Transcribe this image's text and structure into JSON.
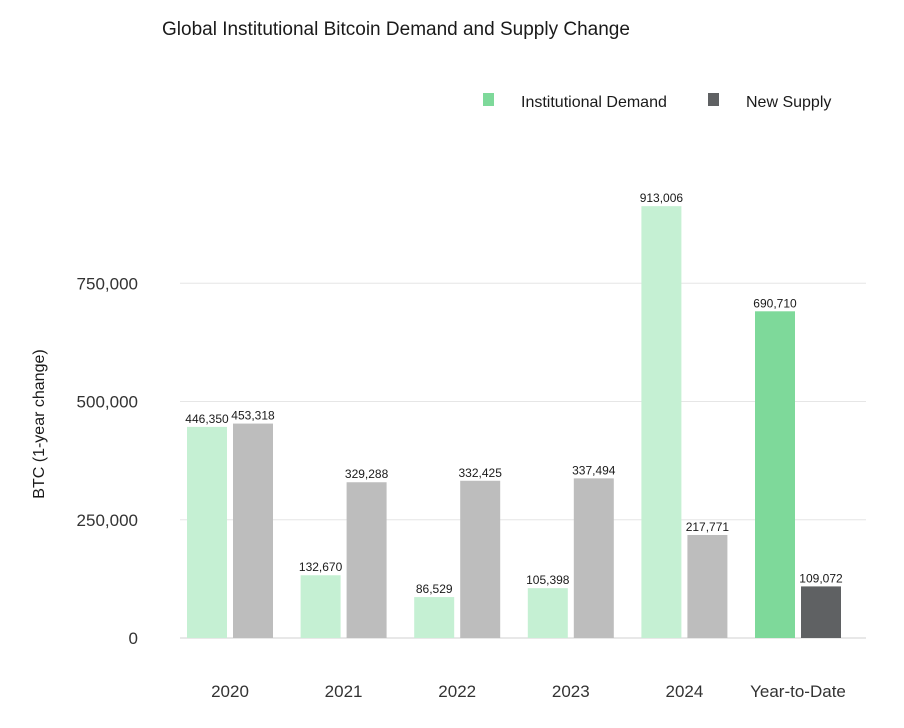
{
  "chart_data": {
    "type": "bar",
    "title": "Global Institutional Bitcoin Demand and Supply Change",
    "ylabel": "BTC (1-year change)",
    "xlabel": "",
    "ylim": [
      0,
      1000000
    ],
    "yticks": [
      0,
      250000,
      500000,
      750000
    ],
    "ytick_labels": [
      "0",
      "250,000",
      "500,000",
      "750,000"
    ],
    "grid": true,
    "legend_position": "top-right",
    "categories": [
      "2020",
      "2021",
      "2022",
      "2023",
      "2024",
      "Year-to-Date"
    ],
    "series": [
      {
        "name": "Institutional Demand",
        "values": [
          446350,
          132670,
          86529,
          105398,
          913006,
          690710
        ],
        "labels": [
          "446,350",
          "132,670",
          "86,529",
          "105,398",
          "913,006",
          "690,710"
        ],
        "color": "#c5f0d3",
        "legend_color": "#7ed99a",
        "highlight_color": "#7ed99a"
      },
      {
        "name": "New Supply",
        "values": [
          453318,
          329288,
          332425,
          337494,
          217771,
          109072
        ],
        "labels": [
          "453,318",
          "329,288",
          "332,425",
          "337,494",
          "217,771",
          "109,072"
        ],
        "color": "#bdbdbd",
        "legend_color": "#5f6163",
        "highlight_color": "#5f6163"
      }
    ],
    "highlight_category": "Year-to-Date"
  }
}
